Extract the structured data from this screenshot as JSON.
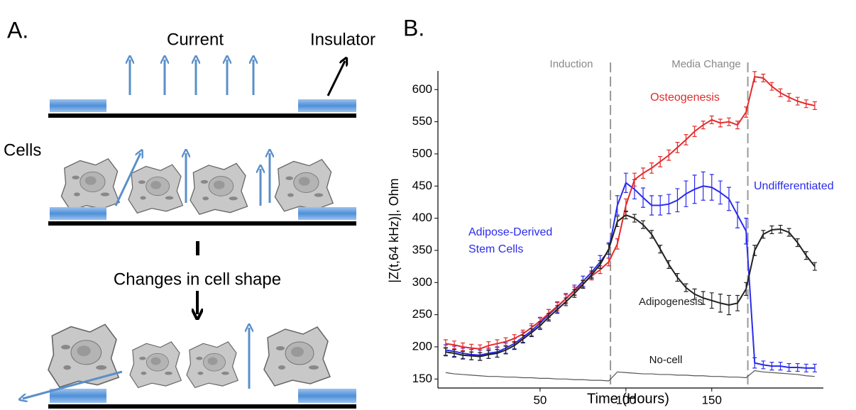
{
  "panel_a": {
    "label": "A.",
    "current": "Current",
    "insulator": "Insulator",
    "cells": "Cells",
    "change": "Changes in cell shape"
  },
  "chart_data": {
    "type": "line",
    "panel_label": "B.",
    "x_label": "Time (Hours)",
    "y_label": "|Z(t,64 kHz)|, Ohm",
    "xlim": [
      -9.5,
      215
    ],
    "ylim": [
      136,
      629
    ],
    "xticks": [
      50,
      100,
      150
    ],
    "yticks": [
      150,
      200,
      250,
      300,
      350,
      400,
      450,
      500,
      550,
      600
    ],
    "events": [
      {
        "x": 91,
        "label": "Induction"
      },
      {
        "x": 171,
        "label": "Media Change"
      }
    ],
    "annotation": [
      "Adipose-Derived",
      "Stem Cells"
    ],
    "x": [
      -5,
      0,
      5,
      10,
      15,
      20,
      25,
      30,
      35,
      40,
      45,
      50,
      55,
      60,
      65,
      70,
      75,
      80,
      85,
      90,
      95,
      100,
      105,
      110,
      115,
      120,
      125,
      130,
      135,
      140,
      145,
      150,
      155,
      160,
      165,
      170,
      175,
      180,
      185,
      190,
      195,
      200,
      205,
      210
    ],
    "series": [
      {
        "name": "Undifferentiated",
        "color": "#2b2bee",
        "values": [
          195,
          193,
          190,
          188,
          187,
          190,
          192,
          198,
          205,
          215,
          225,
          237,
          250,
          262,
          275,
          288,
          302,
          316,
          332,
          350,
          420,
          455,
          445,
          432,
          420,
          420,
          422,
          428,
          438,
          445,
          450,
          448,
          440,
          430,
          405,
          380,
          175,
          172,
          170,
          170,
          168,
          168,
          167,
          167
        ],
        "errors": [
          8,
          8,
          8,
          8,
          8,
          8,
          8,
          8,
          8,
          8,
          8,
          8,
          8,
          8,
          8,
          8,
          8,
          8,
          10,
          12,
          15,
          15,
          15,
          15,
          15,
          15,
          15,
          18,
          20,
          22,
          22,
          20,
          18,
          18,
          20,
          20,
          8,
          6,
          6,
          6,
          6,
          6,
          6,
          6
        ]
      },
      {
        "name": "Osteogenesis",
        "color": "#e32b2b",
        "values": [
          205,
          203,
          200,
          198,
          197,
          202,
          205,
          208,
          213,
          220,
          230,
          240,
          252,
          263,
          275,
          287,
          298,
          310,
          320,
          332,
          360,
          420,
          460,
          470,
          478,
          488,
          498,
          510,
          522,
          535,
          545,
          553,
          548,
          550,
          545,
          565,
          620,
          618,
          605,
          595,
          588,
          582,
          578,
          575
        ],
        "errors": [
          6,
          6,
          6,
          6,
          6,
          6,
          6,
          6,
          6,
          6,
          6,
          6,
          6,
          6,
          6,
          6,
          6,
          6,
          6,
          6,
          8,
          10,
          10,
          8,
          8,
          8,
          8,
          8,
          8,
          8,
          6,
          6,
          6,
          6,
          6,
          8,
          8,
          6,
          6,
          6,
          6,
          6,
          6,
          6
        ]
      },
      {
        "name": "Adipogenesis",
        "color": "#222222",
        "values": [
          192,
          190,
          187,
          186,
          185,
          188,
          190,
          195,
          202,
          212,
          222,
          233,
          246,
          258,
          270,
          283,
          297,
          312,
          328,
          352,
          395,
          405,
          400,
          390,
          375,
          352,
          328,
          308,
          292,
          282,
          276,
          272,
          268,
          265,
          268,
          290,
          350,
          375,
          382,
          383,
          378,
          362,
          342,
          325
        ],
        "errors": [
          6,
          6,
          6,
          6,
          6,
          6,
          6,
          6,
          6,
          6,
          6,
          6,
          6,
          6,
          6,
          6,
          6,
          6,
          6,
          8,
          8,
          6,
          6,
          6,
          6,
          6,
          6,
          6,
          6,
          8,
          10,
          12,
          14,
          15,
          12,
          10,
          8,
          6,
          6,
          6,
          6,
          6,
          6,
          6
        ]
      },
      {
        "name": "No-cell",
        "color": "#555555",
        "values": [
          160,
          158,
          157,
          156,
          155,
          154,
          154,
          153,
          153,
          152,
          152,
          151,
          151,
          150,
          150,
          149,
          149,
          148,
          148,
          147,
          161,
          160,
          159,
          158,
          158,
          157,
          157,
          156,
          156,
          155,
          155,
          154,
          154,
          153,
          153,
          152,
          163,
          161,
          160,
          159,
          158,
          157,
          155,
          154
        ]
      }
    ]
  }
}
